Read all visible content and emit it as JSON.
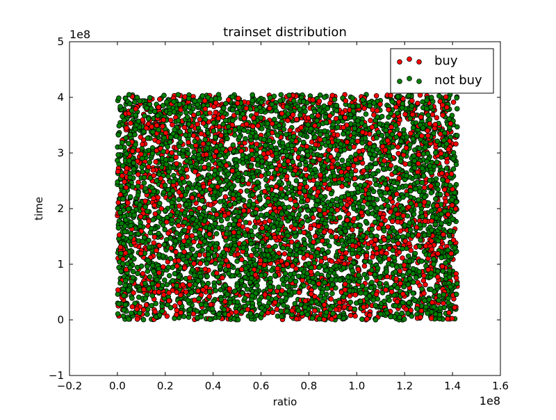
{
  "chart_data": {
    "type": "scatter",
    "title": "trainset distribution",
    "xlabel": "ratio",
    "ylabel": "time",
    "x_offset_label": "1e8",
    "y_offset_label": "1e8",
    "xlim": [
      -0.2,
      1.6
    ],
    "ylim": [
      -1,
      5
    ],
    "x_ticks": [
      -0.2,
      0.0,
      0.2,
      0.4,
      0.6,
      0.8,
      1.0,
      1.2,
      1.4,
      1.6
    ],
    "x_tick_labels": [
      "−0.2",
      "0.0",
      "0.2",
      "0.4",
      "0.6",
      "0.8",
      "1.0",
      "1.2",
      "1.4",
      "1.6"
    ],
    "y_ticks": [
      -1,
      0,
      1,
      2,
      3,
      4,
      5
    ],
    "y_tick_labels": [
      "−1",
      "0",
      "1",
      "2",
      "3",
      "4",
      "5"
    ],
    "grid": false,
    "legend_position": "top-right",
    "x_range_of_points": [
      0.0,
      1.42
    ],
    "y_range_of_points": [
      0.0,
      4.05
    ],
    "series": [
      {
        "name": "buy",
        "color": "#ff0000",
        "edge_color": "#000000",
        "point_count": 1800
      },
      {
        "name": "not buy",
        "color": "#008000",
        "edge_color": "#000000",
        "point_count": 4200
      }
    ]
  }
}
